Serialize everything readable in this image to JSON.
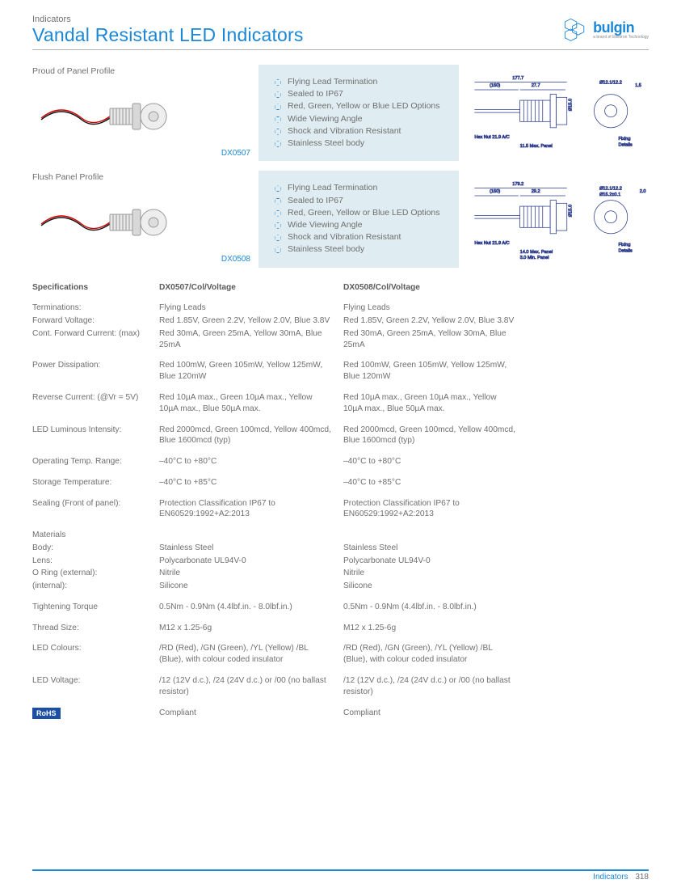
{
  "header": {
    "supertitle": "Indicators",
    "title": "Vandal Resistant LED Indicators",
    "brand": "bulgin",
    "brand_sub": "a brand of Elektron Technology"
  },
  "colors": {
    "accent": "#1b87d6",
    "feature_bg": "#dfecf2",
    "text": "#6f6f6f",
    "rohs_bg": "#1b4fa6"
  },
  "profiles": [
    {
      "title": "Proud of Panel Profile",
      "code": "DX0507",
      "features": [
        "Flying Lead Termination",
        "Sealed to IP67",
        "Red, Green, Yellow or Blue LED Options",
        "Wide Viewing Angle",
        "Shock and Vibration Resistant",
        "Stainless Steel body"
      ]
    },
    {
      "title": "Flush Panel Profile",
      "code": "DX0508",
      "features": [
        "Flying Lead Termination",
        "Sealed to IP67",
        "Red, Green, Yellow or Blue LED Options",
        "Wide Viewing Angle",
        "Shock and Vibration Resistant",
        "Stainless Steel body"
      ]
    }
  ],
  "specs": {
    "header": {
      "label": "Specifications",
      "col1": "DX0507/Col/Voltage",
      "col2": "DX0508/Col/Voltage"
    },
    "rows": [
      {
        "label": "Terminations:",
        "c1": "Flying Leads",
        "c2": "Flying Leads"
      },
      {
        "label": "Forward Voltage:",
        "c1": "Red 1.85V, Green 2.2V, Yellow 2.0V, Blue 3.8V",
        "c2": "Red 1.85V, Green 2.2V, Yellow 2.0V, Blue 3.8V"
      },
      {
        "label": "Cont. Forward Current: (max)",
        "c1": "Red 30mA, Green 25mA, Yellow 30mA, Blue 25mA",
        "c2": "Red 30mA, Green 25mA, Yellow 30mA, Blue 25mA"
      },
      {
        "gap": true
      },
      {
        "label": "Power Dissipation:",
        "c1": "Red 100mW, Green 105mW, Yellow 125mW, Blue 120mW",
        "c2": "Red 100mW, Green 105mW, Yellow 125mW, Blue 120mW"
      },
      {
        "gap": true
      },
      {
        "label": "Reverse Current: (@Vr = 5V)",
        "c1": "Red 10µA max., Green 10µA max., Yellow 10µA max., Blue 50µA max.",
        "c2": "Red 10µA max., Green 10µA max., Yellow 10µA max., Blue 50µA max."
      },
      {
        "gap": true
      },
      {
        "label": "LED Luminous Intensity:",
        "c1": "Red 2000mcd, Green 100mcd, Yellow 400mcd, Blue 1600mcd (typ)",
        "c2": "Red 2000mcd, Green 100mcd, Yellow 400mcd, Blue 1600mcd (typ)"
      },
      {
        "gap": true
      },
      {
        "label": "Operating Temp. Range:",
        "c1": "–40°C to +80°C",
        "c2": "–40°C to +80°C"
      },
      {
        "gap": true
      },
      {
        "label": "Storage Temperature:",
        "c1": "–40°C to +85°C",
        "c2": "–40°C to +85°C"
      },
      {
        "gap": true
      },
      {
        "label": "Sealing (Front of panel):",
        "c1": "Protection Classification IP67 to EN60529:1992+A2:2013",
        "c2": "Protection Classification IP67 to EN60529:1992+A2:2013"
      },
      {
        "gap": true
      },
      {
        "label": "Materials",
        "c1": "",
        "c2": ""
      },
      {
        "label": "Body:",
        "c1": "Stainless Steel",
        "c2": "Stainless Steel"
      },
      {
        "label": "Lens:",
        "c1": "Polycarbonate UL94V-0",
        "c2": "Polycarbonate UL94V-0"
      },
      {
        "label": "O Ring (external):",
        "c1": "Nitrile",
        "c2": "Nitrile"
      },
      {
        "label": "(internal):",
        "c1": "Silicone",
        "c2": "Silicone"
      },
      {
        "gap": true
      },
      {
        "label": "Tightening Torque",
        "c1": "0.5Nm - 0.9Nm (4.4lbf.in. - 8.0lbf.in.)",
        "c2": "0.5Nm - 0.9Nm (4.4lbf.in. - 8.0lbf.in.)"
      },
      {
        "gap": true
      },
      {
        "label": "Thread Size:",
        "c1": "M12 x 1.25-6g",
        "c2": "M12 x 1.25-6g"
      },
      {
        "gap": true
      },
      {
        "label": "LED Colours:",
        "c1": "/RD (Red), /GN (Green), /YL (Yellow) /BL (Blue), with colour coded insulator",
        "c2": "/RD (Red), /GN (Green), /YL (Yellow) /BL (Blue), with colour coded insulator"
      },
      {
        "gap": true
      },
      {
        "label": "LED Voltage:",
        "c1": "/12 (12V d.c.), /24 (24V d.c.) or /00 (no ballast resistor)",
        "c2": "/12 (12V d.c.), /24 (24V d.c.) or /00 (no ballast resistor)"
      },
      {
        "gap": true
      },
      {
        "label": "__ROHS__",
        "c1": "Compliant",
        "c2": "Compliant"
      }
    ]
  },
  "rohs_label": "RoHS",
  "footer": {
    "section": "Indicators",
    "page": "318"
  }
}
